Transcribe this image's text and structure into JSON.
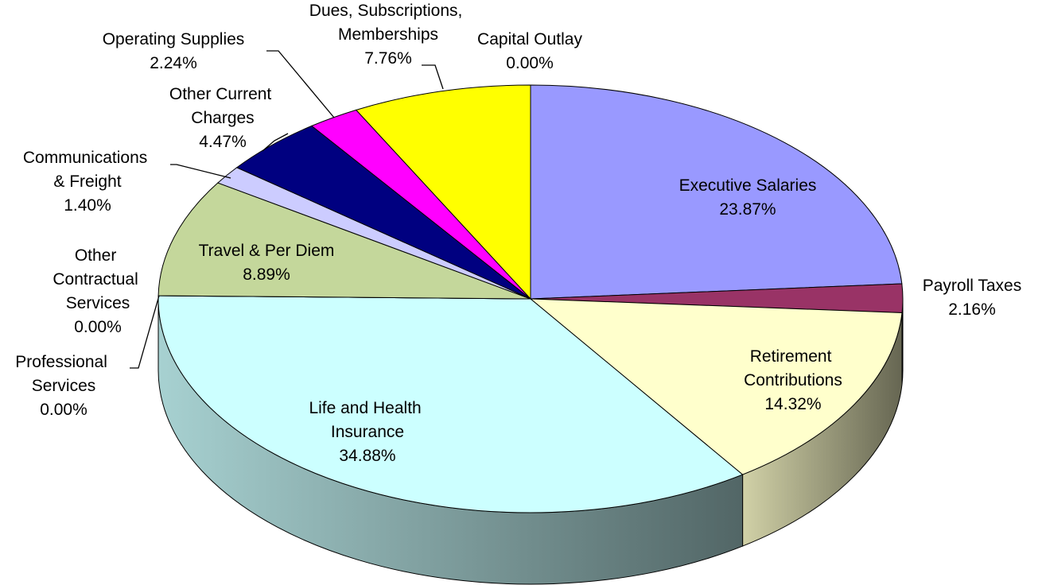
{
  "chart_data": {
    "type": "pie3d",
    "categories": [
      "Executive Salaries",
      "Payroll Taxes",
      "Retirement Contributions",
      "Life and Health Insurance",
      "Professional Services",
      "Other Contractual Services",
      "Travel & Per Diem",
      "Communications & Freight",
      "Other Current Charges",
      "Operating Supplies",
      "Dues, Subscriptions, Memberships",
      "Capital Outlay"
    ],
    "values": [
      23.87,
      2.16,
      14.32,
      34.88,
      0,
      0,
      8.89,
      1.4,
      4.47,
      2.24,
      7.76,
      0
    ],
    "value_labels": [
      "23.87%",
      "2.16%",
      "14.32%",
      "34.88%",
      "0.00%",
      "0.00%",
      "8.89%",
      "1.40%",
      "4.47%",
      "2.24%",
      "7.76%",
      "0.00%"
    ],
    "colors": [
      "#9999ff",
      "#993366",
      "#ffffcc",
      "#ccffff",
      "#ffcc99",
      "#3366ff",
      "#c4d79b",
      "#ccccff",
      "#000080",
      "#ff00ff",
      "#ffff00",
      "#ff9900"
    ]
  }
}
